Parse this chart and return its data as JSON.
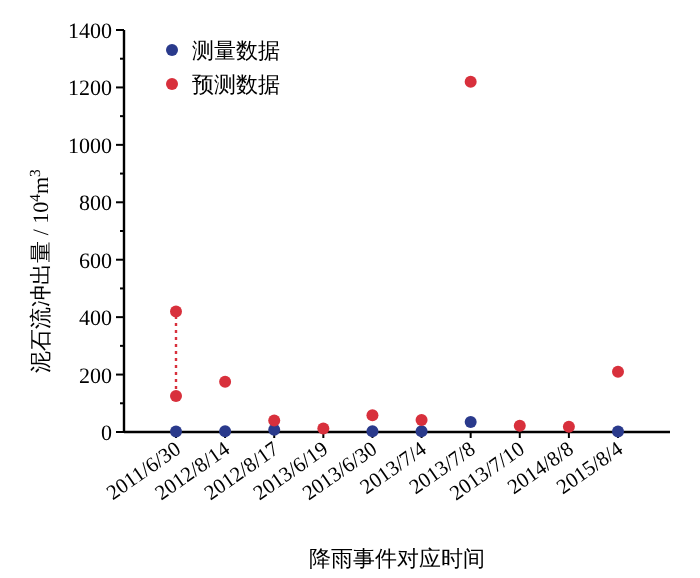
{
  "chart_data": {
    "type": "scatter",
    "xlabel": "降雨事件对应时间",
    "ylabel": "泥石流冲出量 / 10$^{4}$m$^{3}$",
    "categories": [
      "2011/6/30",
      "2012/8/14",
      "2012/8/17",
      "2013/6/19",
      "2013/6/30",
      "2013/7/4",
      "2013/7/8",
      "2013/7/10",
      "2014/8/8",
      "2015/8/4"
    ],
    "ylim": [
      0,
      1400
    ],
    "yticks": [
      0,
      200,
      400,
      600,
      800,
      1000,
      1200,
      1400
    ],
    "grid": false,
    "legend": "top left",
    "marker": "circle",
    "series": [
      {
        "name": "测量数据",
        "color": "#2a3a8c",
        "values": [
          2,
          3,
          8,
          null,
          3,
          3,
          35,
          null,
          null,
          2
        ]
      },
      {
        "name": "预测数据",
        "color": "#d8303c",
        "x": [
          "2011/6/30",
          "2011/6/30",
          "2012/8/14",
          "2012/8/17",
          "2013/6/19",
          "2013/6/30",
          "2013/7/4",
          "2013/7/8",
          "2013/7/10",
          "2014/8/8",
          "2015/8/4"
        ],
        "values": [
          420,
          125,
          175,
          40,
          12,
          58,
          42,
          1220,
          22,
          18,
          210
        ]
      },
      {
        "type": "line",
        "marker": "none",
        "color": "#d8303c",
        "line_style": "dotted",
        "x": [
          "2011/6/30",
          "2011/6/30"
        ],
        "values": [
          125,
          420
        ]
      }
    ]
  }
}
